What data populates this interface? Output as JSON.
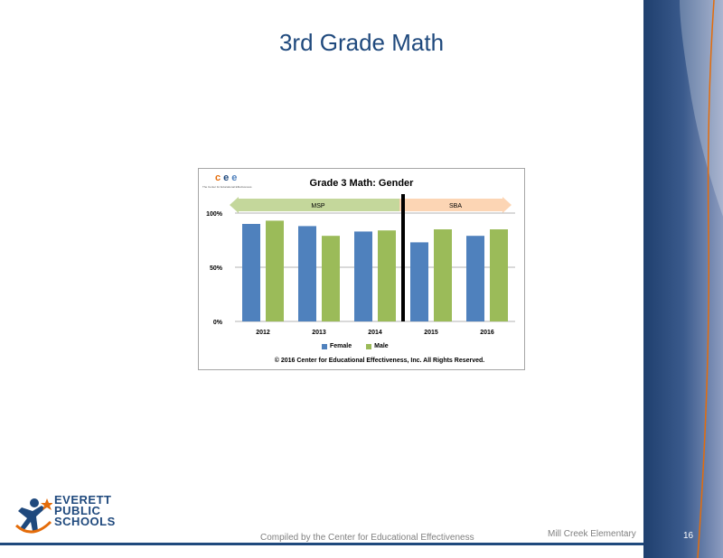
{
  "slide": {
    "title": "3rd Grade Math",
    "footer_center": "Compiled by the Center for Educational Effectiveness",
    "footer_right": "Mill Creek Elementary",
    "page_number": "16"
  },
  "logo": {
    "lines": [
      "EVERETT",
      "PUBLIC",
      "SCHOOLS"
    ]
  },
  "cee_logo": {
    "letters": [
      "c",
      "e",
      "e"
    ],
    "tagline": "The Center for Educational Effectiveness"
  },
  "colors": {
    "female": "#4f81bd",
    "male": "#9bbb59",
    "title": "#1f497d",
    "msp_band": "#c4d79b",
    "sba_band": "#fcd5b4"
  },
  "chart_data": {
    "type": "bar",
    "title": "Grade 3 Math: Gender",
    "categories": [
      "2012",
      "2013",
      "2014",
      "2015",
      "2016"
    ],
    "series": [
      {
        "name": "Female",
        "values": [
          90,
          88,
          83,
          73,
          79
        ]
      },
      {
        "name": "Male",
        "values": [
          93,
          79,
          84,
          85,
          85
        ]
      }
    ],
    "ylim": [
      0,
      100
    ],
    "yticks": [
      "0%",
      "50%",
      "100%"
    ],
    "ytick_values": [
      0,
      50,
      100
    ],
    "bands": [
      {
        "label": "MSP",
        "from": "2012",
        "to": "2014"
      },
      {
        "label": "SBA",
        "from": "2015",
        "to": "2016"
      }
    ],
    "divider_after": "2014",
    "legend": "bottom",
    "grid": true,
    "copyright": "© 2016 Center for Educational Effectiveness, Inc. All Rights Reserved."
  }
}
